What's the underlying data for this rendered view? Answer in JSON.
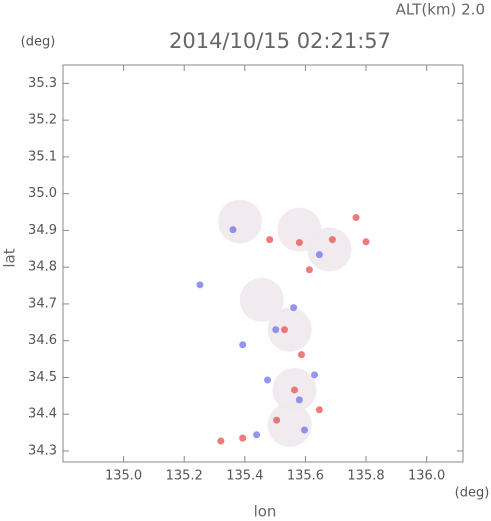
{
  "chart_data": {
    "type": "scatter",
    "annotation": "ALT(km) 2.0",
    "title": "2014/10/15 02:21:57",
    "y_unit": "(deg)",
    "x_unit": "(deg)",
    "y_label": "lat",
    "x_label": "lon",
    "xlim": [
      134.8,
      136.12
    ],
    "ylim": [
      34.27,
      35.35
    ],
    "xticks": [
      {
        "value": 135.0,
        "label": "135.0"
      },
      135.2,
      135.4,
      135.6,
      135.8,
      {
        "value": 136.0,
        "label": "136.0"
      }
    ],
    "yticks": [
      34.3,
      34.4,
      34.5,
      34.6,
      34.7,
      34.8,
      34.9,
      {
        "value": 35.0,
        "label": "35.0"
      },
      35.1,
      35.2,
      35.3
    ],
    "series": [
      {
        "color": "#efe9ee",
        "x": [
          135.384,
          135.58,
          135.548,
          135.564,
          135.548,
          135.679,
          135.456
        ],
        "y": [
          34.924,
          34.902,
          34.63,
          34.466,
          34.371,
          34.848,
          34.711
        ]
      },
      {
        "color": "#e85a5a",
        "x": [
          135.321,
          135.393,
          135.58,
          135.8,
          135.767,
          135.689,
          135.587,
          135.531,
          135.564,
          135.646,
          135.505,
          135.613,
          135.482
        ],
        "y": [
          34.327,
          34.335,
          34.867,
          34.869,
          34.935,
          34.875,
          34.562,
          34.63,
          34.466,
          34.412,
          34.384,
          34.793,
          34.875
        ]
      },
      {
        "color": "#7a7ae8",
        "x": [
          135.439,
          135.393,
          135.502,
          135.58,
          135.475,
          135.646,
          135.561,
          135.597,
          135.252,
          135.361,
          135.63
        ],
        "y": [
          34.344,
          34.589,
          34.63,
          34.439,
          34.493,
          34.834,
          34.69,
          34.357,
          34.752,
          34.902,
          34.507
        ]
      }
    ]
  }
}
